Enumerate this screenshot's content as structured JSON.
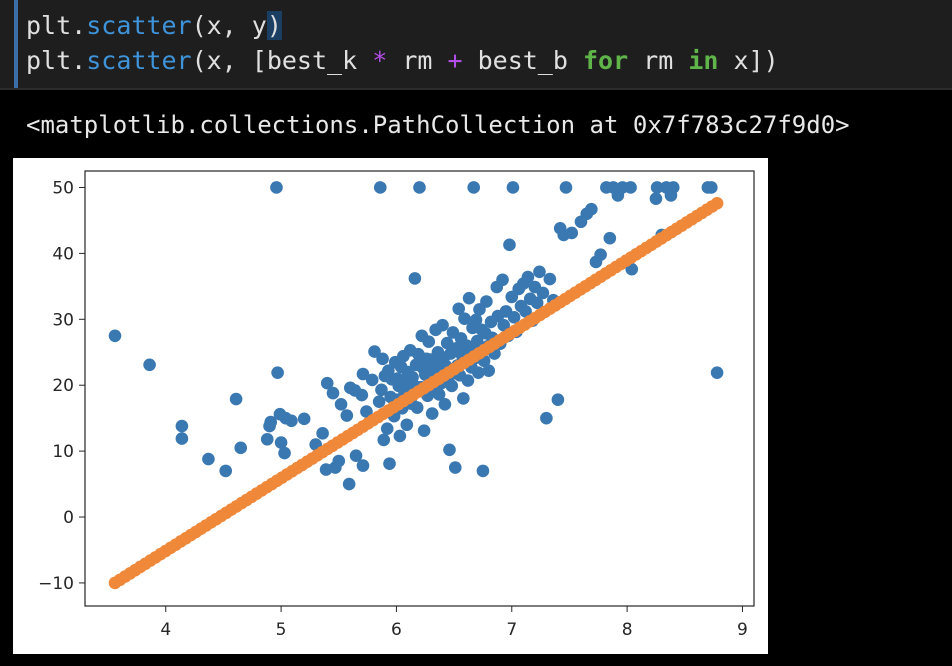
{
  "code": {
    "line1": {
      "obj": "plt",
      "dot": ".",
      "method": "scatter",
      "args": "(x, y",
      "caret": ")"
    },
    "line2": {
      "obj": "plt",
      "dot": ".",
      "method": "scatter",
      "open": "(x, [best_k ",
      "op1": "*",
      "mid1": " rm ",
      "op2": "+",
      "mid2": " best_b ",
      "kw1": "for",
      "mid3": " rm ",
      "kw2": "in",
      "close": " x])"
    }
  },
  "output": {
    "text": "<matplotlib.collections.PathCollection at 0x7f783c27f9d0>"
  },
  "colors": {
    "series_blue": "#3a78b2",
    "series_orange": "#f0883a",
    "method": "#3e93d9",
    "keyword": "#5fb54a",
    "operator": "#b24de8"
  },
  "chart_data": {
    "type": "scatter",
    "xlim": [
      3.3,
      9.1
    ],
    "ylim": [
      -13.5,
      52.5
    ],
    "x_ticks": [
      4,
      5,
      6,
      7,
      8,
      9
    ],
    "y_ticks": [
      -10,
      0,
      10,
      20,
      30,
      40,
      50
    ],
    "x_tick_labels": [
      "4",
      "5",
      "6",
      "7",
      "8",
      "9"
    ],
    "y_tick_labels": [
      "−10",
      "0",
      "10",
      "20",
      "30",
      "40",
      "50"
    ],
    "grid": false,
    "series": [
      {
        "color": "#3a78b2",
        "points": [
          [
            3.56,
            27.5
          ],
          [
            3.86,
            23.1
          ],
          [
            4.14,
            13.8
          ],
          [
            4.14,
            11.9
          ],
          [
            4.37,
            8.8
          ],
          [
            4.52,
            7.0
          ],
          [
            4.61,
            17.9
          ],
          [
            4.65,
            10.5
          ],
          [
            4.88,
            11.8
          ],
          [
            4.9,
            13.8
          ],
          [
            4.91,
            14.4
          ],
          [
            4.96,
            50.0
          ],
          [
            4.97,
            21.9
          ],
          [
            4.99,
            15.6
          ],
          [
            5.0,
            11.3
          ],
          [
            5.03,
            9.7
          ],
          [
            5.04,
            15.0
          ],
          [
            5.09,
            14.6
          ],
          [
            5.2,
            14.9
          ],
          [
            5.3,
            11.0
          ],
          [
            5.36,
            12.7
          ],
          [
            5.39,
            7.2
          ],
          [
            5.4,
            20.3
          ],
          [
            5.45,
            18.8
          ],
          [
            5.47,
            7.5
          ],
          [
            5.5,
            8.5
          ],
          [
            5.52,
            17.1
          ],
          [
            5.57,
            15.4
          ],
          [
            5.59,
            5.0
          ],
          [
            5.6,
            19.6
          ],
          [
            5.64,
            19.2
          ],
          [
            5.65,
            9.3
          ],
          [
            5.7,
            18.5
          ],
          [
            5.71,
            21.7
          ],
          [
            5.71,
            7.8
          ],
          [
            5.74,
            16.0
          ],
          [
            5.79,
            20.8
          ],
          [
            5.81,
            25.1
          ],
          [
            5.85,
            17.5
          ],
          [
            5.86,
            50.0
          ],
          [
            5.87,
            19.3
          ],
          [
            5.88,
            24.0
          ],
          [
            5.89,
            11.7
          ],
          [
            5.9,
            21.4
          ],
          [
            5.92,
            13.4
          ],
          [
            5.93,
            22.2
          ],
          [
            5.94,
            8.1
          ],
          [
            5.95,
            18.2
          ],
          [
            5.96,
            20.9
          ],
          [
            5.98,
            15.3
          ],
          [
            5.99,
            23.5
          ],
          [
            6.0,
            17.8
          ],
          [
            6.01,
            21.0
          ],
          [
            6.02,
            19.9
          ],
          [
            6.03,
            12.3
          ],
          [
            6.04,
            22.8
          ],
          [
            6.05,
            16.5
          ],
          [
            6.06,
            24.4
          ],
          [
            6.07,
            18.9
          ],
          [
            6.08,
            20.4
          ],
          [
            6.09,
            14.0
          ],
          [
            6.1,
            22.0
          ],
          [
            6.11,
            19.4
          ],
          [
            6.12,
            25.3
          ],
          [
            6.13,
            17.2
          ],
          [
            6.14,
            21.2
          ],
          [
            6.15,
            20.0
          ],
          [
            6.16,
            36.2
          ],
          [
            6.17,
            23.1
          ],
          [
            6.18,
            16.6
          ],
          [
            6.19,
            24.7
          ],
          [
            6.2,
            50.0
          ],
          [
            6.21,
            19.7
          ],
          [
            6.22,
            27.5
          ],
          [
            6.23,
            22.6
          ],
          [
            6.24,
            13.1
          ],
          [
            6.25,
            21.6
          ],
          [
            6.26,
            24.0
          ],
          [
            6.27,
            18.4
          ],
          [
            6.28,
            26.6
          ],
          [
            6.29,
            20.6
          ],
          [
            6.3,
            23.9
          ],
          [
            6.31,
            15.7
          ],
          [
            6.32,
            22.5
          ],
          [
            6.33,
            19.5
          ],
          [
            6.34,
            28.4
          ],
          [
            6.35,
            21.8
          ],
          [
            6.36,
            25.0
          ],
          [
            6.37,
            18.6
          ],
          [
            6.38,
            23.3
          ],
          [
            6.39,
            20.3
          ],
          [
            6.4,
            29.1
          ],
          [
            6.41,
            24.2
          ],
          [
            6.42,
            17.1
          ],
          [
            6.43,
            22.9
          ],
          [
            6.44,
            26.4
          ],
          [
            6.45,
            21.0
          ],
          [
            6.46,
            10.2
          ],
          [
            6.47,
            24.8
          ],
          [
            6.48,
            19.9
          ],
          [
            6.49,
            28.0
          ],
          [
            6.5,
            22.4
          ],
          [
            6.51,
            7.5
          ],
          [
            6.52,
            25.6
          ],
          [
            6.53,
            23.0
          ],
          [
            6.54,
            31.6
          ],
          [
            6.55,
            21.5
          ],
          [
            6.56,
            27.1
          ],
          [
            6.57,
            24.5
          ],
          [
            6.58,
            18.0
          ],
          [
            6.59,
            30.1
          ],
          [
            6.6,
            23.8
          ],
          [
            6.61,
            26.0
          ],
          [
            6.62,
            20.7
          ],
          [
            6.63,
            33.2
          ],
          [
            6.64,
            25.2
          ],
          [
            6.65,
            22.7
          ],
          [
            6.66,
            28.7
          ],
          [
            6.67,
            50.0
          ],
          [
            6.68,
            24.1
          ],
          [
            6.69,
            29.9
          ],
          [
            6.7,
            26.7
          ],
          [
            6.71,
            21.9
          ],
          [
            6.72,
            31.5
          ],
          [
            6.73,
            25.5
          ],
          [
            6.74,
            28.4
          ],
          [
            6.75,
            7.0
          ],
          [
            6.76,
            23.7
          ],
          [
            6.77,
            27.9
          ],
          [
            6.78,
            32.7
          ],
          [
            6.79,
            25.9
          ],
          [
            6.8,
            22.2
          ],
          [
            6.82,
            29.6
          ],
          [
            6.83,
            27.2
          ],
          [
            6.85,
            24.8
          ],
          [
            6.87,
            34.9
          ],
          [
            6.88,
            30.5
          ],
          [
            6.9,
            26.3
          ],
          [
            6.92,
            36.0
          ],
          [
            6.93,
            29.1
          ],
          [
            6.95,
            31.2
          ],
          [
            6.97,
            27.5
          ],
          [
            6.98,
            41.3
          ],
          [
            7.0,
            33.4
          ],
          [
            7.01,
            50.0
          ],
          [
            7.02,
            30.3
          ],
          [
            7.04,
            28.1
          ],
          [
            7.06,
            34.6
          ],
          [
            7.08,
            32.0
          ],
          [
            7.1,
            35.4
          ],
          [
            7.12,
            31.2
          ],
          [
            7.14,
            36.4
          ],
          [
            7.16,
            33.1
          ],
          [
            7.18,
            29.8
          ],
          [
            7.2,
            34.9
          ],
          [
            7.22,
            32.5
          ],
          [
            7.24,
            37.2
          ],
          [
            7.27,
            34.0
          ],
          [
            7.3,
            15.0
          ],
          [
            7.33,
            36.1
          ],
          [
            7.36,
            32.9
          ],
          [
            7.4,
            17.8
          ],
          [
            7.42,
            43.8
          ],
          [
            7.45,
            42.8
          ],
          [
            7.47,
            50.0
          ],
          [
            7.52,
            43.1
          ],
          [
            7.6,
            44.8
          ],
          [
            7.65,
            46.0
          ],
          [
            7.69,
            46.7
          ],
          [
            7.73,
            38.7
          ],
          [
            7.77,
            39.8
          ],
          [
            7.82,
            50.0
          ],
          [
            7.85,
            42.3
          ],
          [
            7.88,
            50.0
          ],
          [
            7.92,
            48.8
          ],
          [
            7.96,
            50.0
          ],
          [
            8.03,
            50.0
          ],
          [
            8.04,
            37.6
          ],
          [
            8.25,
            48.3
          ],
          [
            8.26,
            50.0
          ],
          [
            8.3,
            42.8
          ],
          [
            8.34,
            50.0
          ],
          [
            8.38,
            48.8
          ],
          [
            8.4,
            50.0
          ],
          [
            8.7,
            50.0
          ],
          [
            8.73,
            50.0
          ],
          [
            8.78,
            21.9
          ]
        ]
      },
      {
        "color": "#f0883a",
        "line_from": [
          3.56,
          -10.0
        ],
        "line_to": [
          8.78,
          47.6
        ],
        "count": 120
      }
    ]
  }
}
